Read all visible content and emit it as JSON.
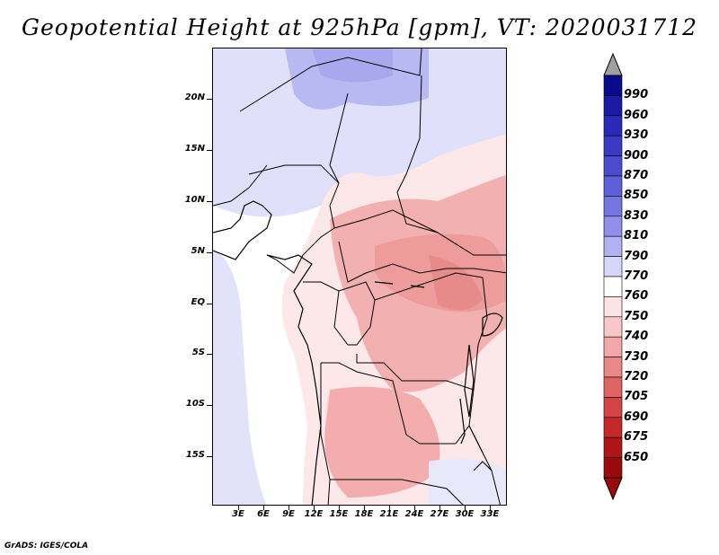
{
  "title": "Geopotential Height at 925hPa [gpm], VT: 2020031712",
  "footer": "GrADS: IGES/COLA",
  "map": {
    "region": "Central Africa",
    "lat_labels": [
      "20N",
      "15N",
      "10N",
      "5N",
      "EQ",
      "5S",
      "10S",
      "15S"
    ],
    "lon_labels": [
      "3E",
      "6E",
      "9E",
      "12E",
      "15E",
      "18E",
      "21E",
      "24E",
      "27E",
      "30E",
      "33E"
    ]
  },
  "colorbar": {
    "levels": [
      "990",
      "960",
      "930",
      "900",
      "870",
      "850",
      "830",
      "810",
      "790",
      "770",
      "760",
      "750",
      "740",
      "730",
      "720",
      "705",
      "690",
      "675",
      "650"
    ],
    "colors": [
      "#0a0a8c",
      "#1a1aa6",
      "#2a2ab8",
      "#3a3ac6",
      "#4b4bd0",
      "#5f5fda",
      "#7676e2",
      "#9090ea",
      "#b2b2f2",
      "#d6d6fa",
      "#ffffff",
      "#fce4e4",
      "#f8c8c8",
      "#f2a8a8",
      "#ea8888",
      "#e06464",
      "#d44444",
      "#c42828",
      "#b01414",
      "#9a0a0a"
    ],
    "top_arrow_color": "#a0a0a0",
    "bottom_arrow_color": "#9a0a0a"
  }
}
